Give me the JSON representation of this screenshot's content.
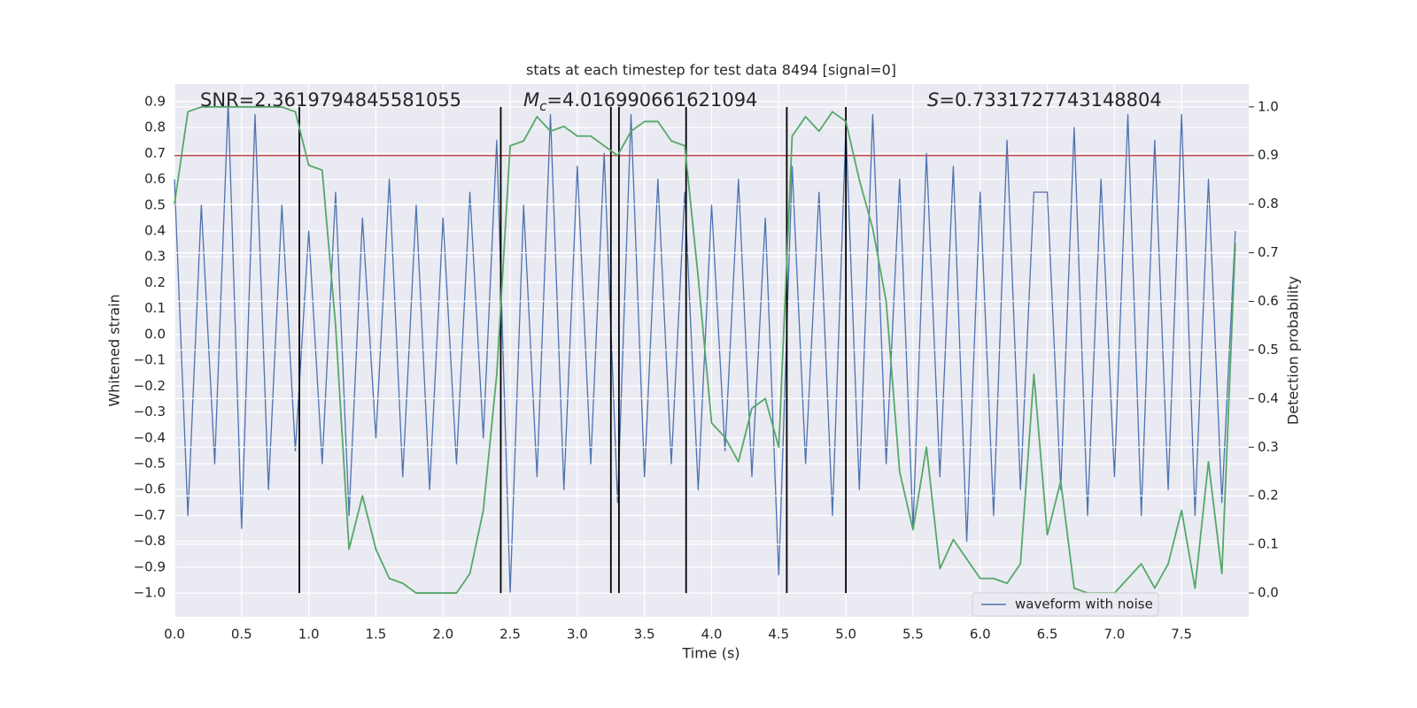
{
  "chart_data": {
    "type": "line",
    "title": "stats at each timestep for test data 8494 [signal=0]",
    "xlabel": "Time (s)",
    "ylabel": "Whitened strain",
    "y2label": "Detection probability",
    "grid": true,
    "legend": "lower right",
    "xlim": [
      0,
      8.0
    ],
    "ylim": [
      -1.092,
      0.968
    ],
    "y2lim": [
      -0.049,
      1.047
    ],
    "xticks": [
      {
        "value": 0,
        "label": "0.0"
      },
      {
        "value": 0.5,
        "label": "0.5"
      },
      {
        "value": 1,
        "label": "1.0"
      },
      {
        "value": 1.5,
        "label": "1.5"
      },
      {
        "value": 2,
        "label": "2.0"
      },
      {
        "value": 2.5,
        "label": "2.5"
      },
      {
        "value": 3,
        "label": "3.0"
      },
      {
        "value": 3.5,
        "label": "3.5"
      },
      {
        "value": 4,
        "label": "4.0"
      },
      {
        "value": 4.5,
        "label": "4.5"
      },
      {
        "value": 5,
        "label": "5.0"
      },
      {
        "value": 5.5,
        "label": "5.5"
      },
      {
        "value": 6,
        "label": "6.0"
      },
      {
        "value": 6.5,
        "label": "6.5"
      },
      {
        "value": 7,
        "label": "7.0"
      },
      {
        "value": 7.5,
        "label": "7.5"
      }
    ],
    "yticks": [
      {
        "value": -1.0,
        "label": "−1.0"
      },
      {
        "value": -0.9,
        "label": "−0.9"
      },
      {
        "value": -0.8,
        "label": "−0.8"
      },
      {
        "value": -0.7,
        "label": "−0.7"
      },
      {
        "value": -0.6,
        "label": "−0.6"
      },
      {
        "value": -0.5,
        "label": "−0.5"
      },
      {
        "value": -0.4,
        "label": "−0.4"
      },
      {
        "value": -0.3,
        "label": "−0.3"
      },
      {
        "value": -0.2,
        "label": "−0.2"
      },
      {
        "value": -0.1,
        "label": "−0.1"
      },
      {
        "value": 0,
        "label": "0.0"
      },
      {
        "value": 0.1,
        "label": "0.1"
      },
      {
        "value": 0.2,
        "label": "0.2"
      },
      {
        "value": 0.3,
        "label": "0.3"
      },
      {
        "value": 0.4,
        "label": "0.4"
      },
      {
        "value": 0.5,
        "label": "0.5"
      },
      {
        "value": 0.6,
        "label": "0.6"
      },
      {
        "value": 0.7,
        "label": "0.7"
      },
      {
        "value": 0.8,
        "label": "0.8"
      },
      {
        "value": 0.9,
        "label": "0.9"
      }
    ],
    "y2ticks": [
      {
        "value": 0,
        "label": "0.0"
      },
      {
        "value": 0.1,
        "label": "0.1"
      },
      {
        "value": 0.2,
        "label": "0.2"
      },
      {
        "value": 0.3,
        "label": "0.3"
      },
      {
        "value": 0.4,
        "label": "0.4"
      },
      {
        "value": 0.5,
        "label": "0.5"
      },
      {
        "value": 0.6,
        "label": "0.6"
      },
      {
        "value": 0.7,
        "label": "0.7"
      },
      {
        "value": 0.8,
        "label": "0.8"
      },
      {
        "value": 0.9,
        "label": "0.9"
      },
      {
        "value": 1,
        "label": "1.0"
      }
    ],
    "x": [
      0.0,
      0.1,
      0.2,
      0.3,
      0.4,
      0.5,
      0.6,
      0.7,
      0.8,
      0.9,
      1.0,
      1.1,
      1.2,
      1.3,
      1.4,
      1.5,
      1.6,
      1.7,
      1.8,
      1.9,
      2.0,
      2.1,
      2.2,
      2.3,
      2.4,
      2.5,
      2.6,
      2.7,
      2.8,
      2.9,
      3.0,
      3.1,
      3.2,
      3.3,
      3.4,
      3.5,
      3.6,
      3.7,
      3.8,
      3.9,
      4.0,
      4.1,
      4.2,
      4.3,
      4.4,
      4.5,
      4.6,
      4.7,
      4.8,
      4.9,
      5.0,
      5.1,
      5.2,
      5.3,
      5.4,
      5.5,
      5.6,
      5.7,
      5.8,
      5.9,
      6.0,
      6.1,
      6.2,
      6.3,
      6.4,
      6.5,
      6.6,
      6.7,
      6.8,
      6.9,
      7.0,
      7.1,
      7.2,
      7.3,
      7.4,
      7.5,
      7.6,
      7.7,
      7.8,
      7.9
    ],
    "series": [
      {
        "name": "waveform with noise",
        "color": "#4c72b0",
        "values": [
          0.6,
          -0.7,
          0.5,
          -0.5,
          0.9,
          -0.75,
          0.85,
          -0.6,
          0.5,
          -0.45,
          0.4,
          -0.5,
          0.55,
          -0.7,
          0.45,
          -0.4,
          0.6,
          -0.55,
          0.5,
          -0.6,
          0.45,
          -0.5,
          0.55,
          -0.4,
          0.75,
          -1.0,
          0.5,
          -0.55,
          0.85,
          -0.6,
          0.65,
          -0.5,
          0.7,
          -0.65,
          0.85,
          -0.55,
          0.6,
          -0.5,
          0.55,
          -0.6,
          0.5,
          -0.45,
          0.6,
          -0.55,
          0.45,
          -0.93,
          0.65,
          -0.5,
          0.55,
          -0.7,
          0.8,
          -0.6,
          0.85,
          -0.5,
          0.6,
          -0.75,
          0.7,
          -0.55,
          0.65,
          -0.8,
          0.55,
          -0.7,
          0.75,
          -0.6,
          0.55,
          0.55,
          -0.6,
          0.8,
          -0.7,
          0.6,
          -0.55,
          0.85,
          -0.7,
          0.75,
          -0.6,
          0.85,
          -0.7,
          0.6,
          -0.65,
          0.4
        ]
      },
      {
        "color": "#55a868",
        "axis": "y2",
        "values": [
          0.8,
          0.99,
          1.0,
          1.0,
          1.0,
          1.0,
          1.0,
          1.0,
          1.0,
          0.99,
          0.88,
          0.87,
          0.55,
          0.09,
          0.2,
          0.09,
          0.03,
          0.02,
          0.0,
          0.0,
          0.0,
          0.0,
          0.04,
          0.17,
          0.45,
          0.92,
          0.93,
          0.98,
          0.95,
          0.96,
          0.94,
          0.94,
          0.92,
          0.9,
          0.95,
          0.97,
          0.97,
          0.93,
          0.92,
          0.65,
          0.35,
          0.32,
          0.27,
          0.38,
          0.4,
          0.3,
          0.94,
          0.98,
          0.95,
          0.99,
          0.97,
          0.85,
          0.75,
          0.6,
          0.25,
          0.13,
          0.3,
          0.05,
          0.11,
          0.07,
          0.03,
          0.03,
          0.02,
          0.06,
          0.45,
          0.12,
          0.23,
          0.01,
          0.0,
          0.0,
          0.0,
          0.03,
          0.06,
          0.01,
          0.06,
          0.17,
          0.01,
          0.27,
          0.04,
          0.72
        ]
      }
    ],
    "hlines": [
      {
        "value": 0.9,
        "axis": "y2",
        "color": "#c44e52"
      }
    ],
    "vlines": {
      "values": [
        0.93,
        2.43,
        3.25,
        3.31,
        3.81,
        4.56,
        5.0
      ],
      "axis": "y2",
      "span": [
        0,
        1.0
      ],
      "color": "#000000"
    },
    "annotations": [
      {
        "text": "SNR=2.3619794845581055"
      },
      {
        "symbol": "M",
        "subscript": "c",
        "text": "=4.016990661621094"
      },
      {
        "symbol": "S",
        "text": "=0.7331727743148804"
      }
    ]
  }
}
